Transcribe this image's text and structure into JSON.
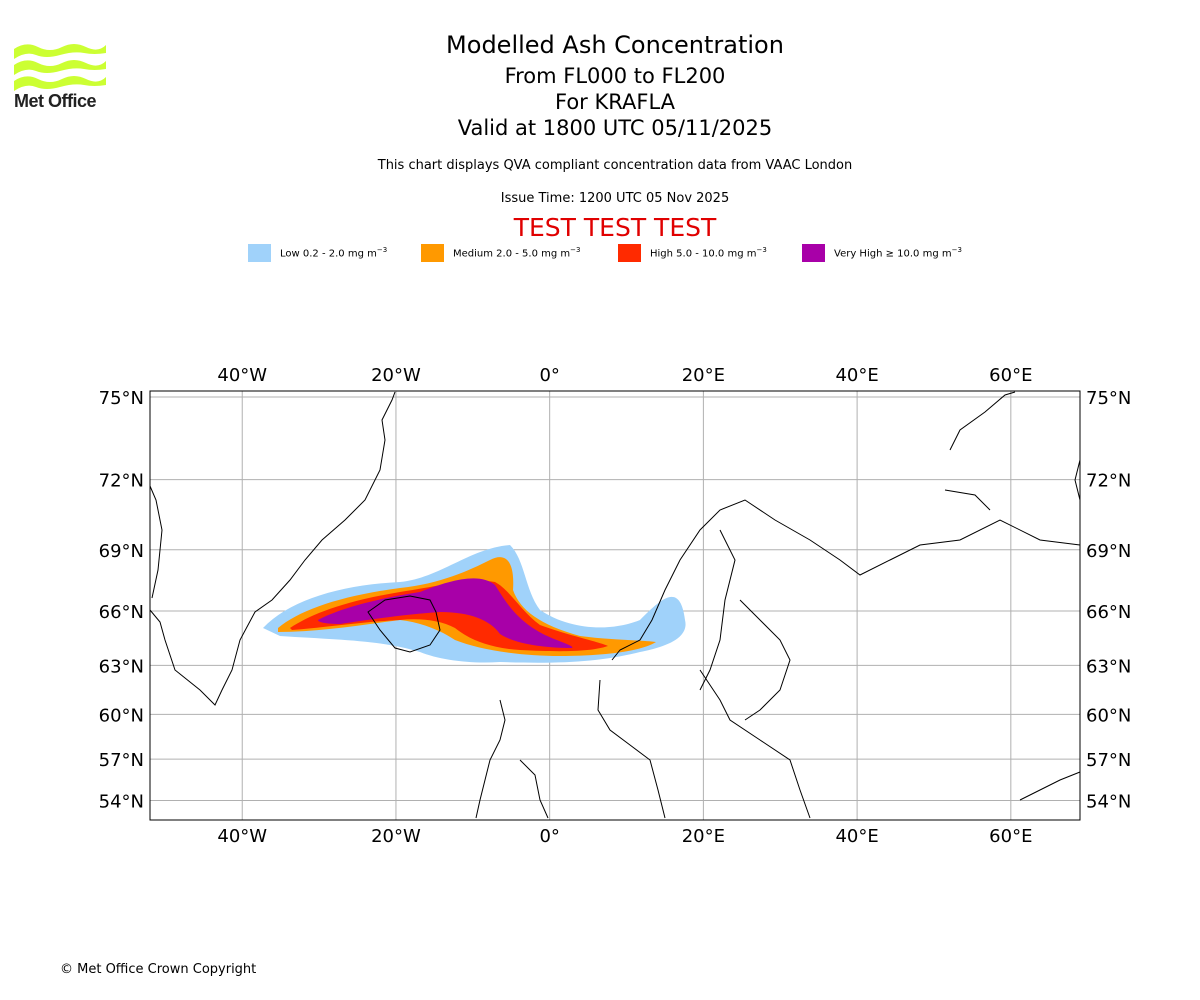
{
  "header": {
    "logo_text": "Met Office",
    "title": "Modelled Ash Concentration",
    "flight_levels": "From FL000 to FL200",
    "volcano": "For KRAFLA",
    "valid_time": "Valid at 1800 UTC 05/11/2025",
    "subtitle": "This chart displays QVA compliant concentration data from VAAC London",
    "issue_time": "Issue Time: 1200 UTC 05 Nov 2025",
    "test_banner": "TEST TEST TEST"
  },
  "legend": [
    {
      "label": "Low 0.2 - 2.0 mg m",
      "sup": "−3",
      "color": "#a0d2fa"
    },
    {
      "label": "Medium 2.0 - 5.0 mg m",
      "sup": "−3",
      "color": "#ff9900"
    },
    {
      "label": "High 5.0 - 10.0 mg m",
      "sup": "−3",
      "color": "#ff2a00"
    },
    {
      "label": "Very High  ≥  10.0 mg m",
      "sup": "−3",
      "color": "#a800a8"
    }
  ],
  "map": {
    "lon_range": [
      -52,
      69
    ],
    "lat_range": [
      52.5,
      75.2
    ],
    "lon_ticks": [
      {
        "value": -40,
        "label": "40°W"
      },
      {
        "value": -20,
        "label": "20°W"
      },
      {
        "value": 0,
        "label": "0°"
      },
      {
        "value": 20,
        "label": "20°E"
      },
      {
        "value": 40,
        "label": "40°E"
      },
      {
        "value": 60,
        "label": "60°E"
      }
    ],
    "lat_ticks": [
      {
        "value": 75,
        "label": "75°N"
      },
      {
        "value": 72,
        "label": "72°N"
      },
      {
        "value": 69,
        "label": "69°N"
      },
      {
        "value": 66,
        "label": "66°N"
      },
      {
        "value": 63,
        "label": "63°N"
      },
      {
        "value": 60,
        "label": "60°N"
      },
      {
        "value": 57,
        "label": "57°N"
      },
      {
        "value": 54,
        "label": "54°N"
      }
    ],
    "grid_color": "#b0b0b0"
  },
  "footer": {
    "copyright": "© Met Office Crown Copyright"
  }
}
